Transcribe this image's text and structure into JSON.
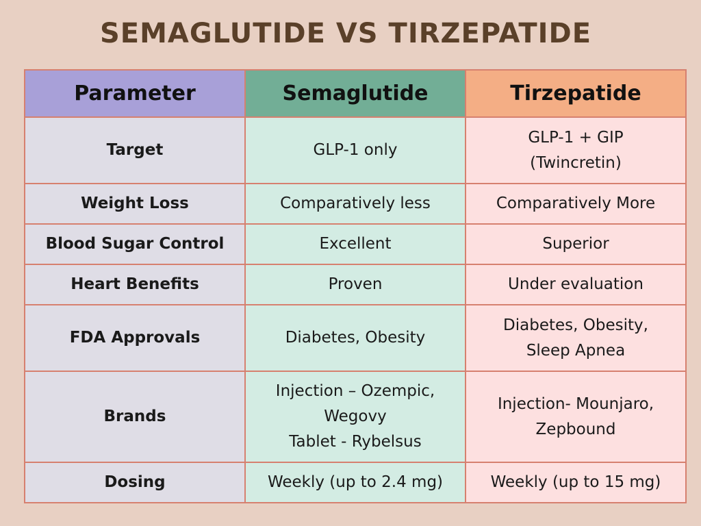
{
  "title": "SEMAGLUTIDE VS TIRZEPATIDE",
  "headers": {
    "parameter": "Parameter",
    "semaglutide": "Semaglutide",
    "tirzepatide": "Tirzepatide"
  },
  "rows": [
    {
      "parameter": "Target",
      "semaglutide": [
        "GLP-1 only"
      ],
      "tirzepatide": [
        "GLP-1 + GIP",
        "(Twincretin)"
      ]
    },
    {
      "parameter": "Weight Loss",
      "semaglutide": [
        "Comparatively less"
      ],
      "tirzepatide": [
        "Comparatively More"
      ]
    },
    {
      "parameter": "Blood Sugar Control",
      "semaglutide": [
        "Excellent"
      ],
      "tirzepatide": [
        "Superior"
      ]
    },
    {
      "parameter": "Heart Benefits",
      "semaglutide": [
        "Proven"
      ],
      "tirzepatide": [
        "Under evaluation"
      ]
    },
    {
      "parameter": "FDA Approvals",
      "semaglutide": [
        "Diabetes, Obesity"
      ],
      "tirzepatide": [
        "Diabetes, Obesity,",
        "Sleep Apnea"
      ]
    },
    {
      "parameter": "Brands",
      "semaglutide": [
        "Injection – Ozempic,",
        "Wegovy",
        "Tablet - Rybelsus"
      ],
      "tirzepatide": [
        "Injection- Mounjaro,",
        "Zepbound"
      ]
    },
    {
      "parameter": "Dosing",
      "semaglutide": [
        "Weekly (up to 2.4 mg)"
      ],
      "tirzepatide": [
        "Weekly (up to 15 mg)"
      ]
    }
  ]
}
